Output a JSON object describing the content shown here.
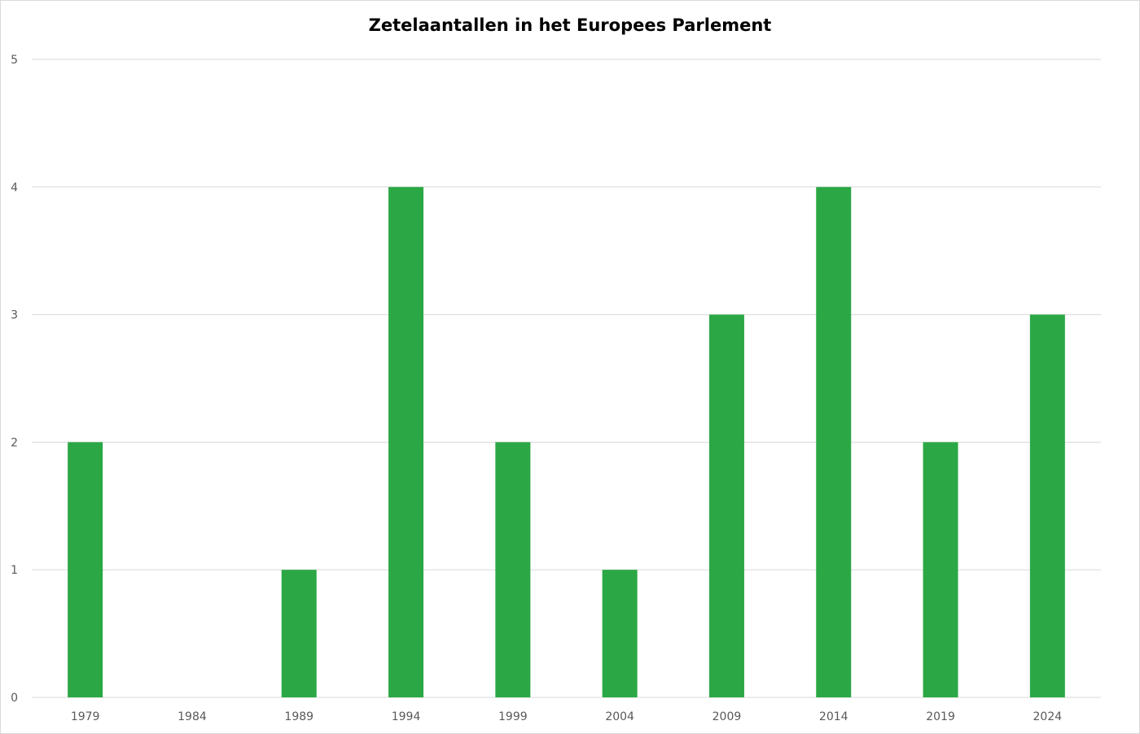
{
  "chart_data": {
    "type": "bar",
    "title": "Zetelaantallen in het Europees Parlement",
    "xlabel": "",
    "ylabel": "",
    "categories": [
      "1979",
      "1984",
      "1989",
      "1994",
      "1999",
      "2004",
      "2009",
      "2014",
      "2019",
      "2024"
    ],
    "series": [
      {
        "values": [
          2,
          0,
          1,
          4,
          2,
          1,
          3,
          4,
          2,
          3
        ]
      }
    ],
    "ylim": [
      0,
      5
    ],
    "yticks": [
      "0",
      "1",
      "2",
      "3",
      "4",
      "5"
    ],
    "grid": true,
    "legend": "none",
    "bar_color": "#2ba845",
    "grid_color": "#d9d9d9"
  }
}
